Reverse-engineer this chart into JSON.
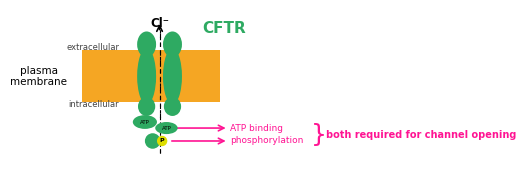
{
  "background_color": "#ffffff",
  "membrane_color": "#F5A623",
  "green_color": "#2EAA62",
  "magenta_color": "#FF1493",
  "cftr_label": "CFTR",
  "cftr_color": "#2EAA62",
  "cl_label": "Cl⁻",
  "plasma_membrane_label": "plasma\nmembrane",
  "extracellular_label": "extracellular",
  "intracellular_label": "intracellular",
  "atp_binding_label": "ATP binding",
  "phosphorylation_label": "phosphorylation",
  "both_required_label": "both required for channel opening",
  "atp_label": "ATP",
  "p_label": "P",
  "figw": 5.29,
  "figh": 1.69,
  "dpi": 100
}
